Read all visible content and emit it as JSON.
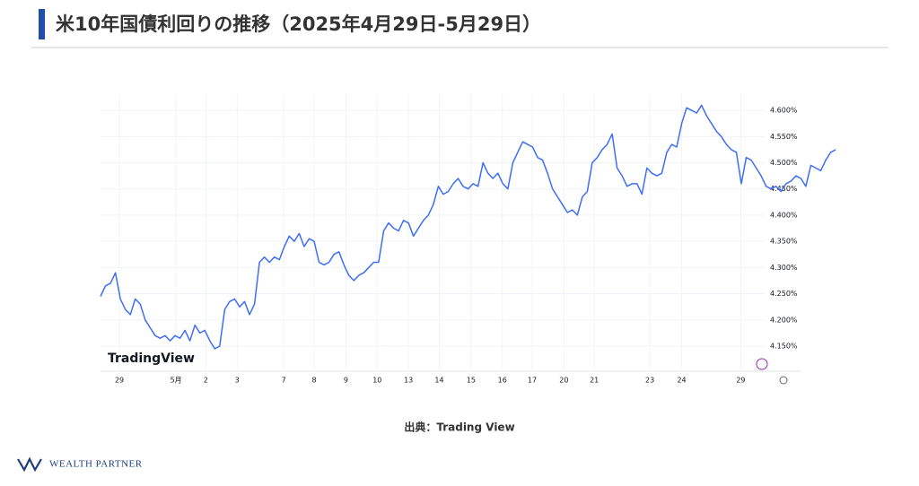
{
  "chart_data": {
    "type": "line",
    "title": "米10年国債利回りの推移（2025年4月29日-5月29日）",
    "color": "#3d6ef5",
    "grid": true,
    "watermark": "TradingView",
    "values": [
      4.245,
      4.265,
      4.27,
      4.29,
      4.24,
      4.22,
      4.21,
      4.24,
      4.23,
      4.2,
      4.185,
      4.17,
      4.165,
      4.17,
      4.16,
      4.17,
      4.165,
      4.18,
      4.16,
      4.19,
      4.175,
      4.18,
      4.16,
      4.145,
      4.15,
      4.22,
      4.235,
      4.24,
      4.225,
      4.235,
      4.21,
      4.23,
      4.31,
      4.32,
      4.31,
      4.32,
      4.315,
      4.34,
      4.36,
      4.35,
      4.365,
      4.34,
      4.355,
      4.35,
      4.31,
      4.305,
      4.31,
      4.325,
      4.33,
      4.305,
      4.285,
      4.275,
      4.285,
      4.29,
      4.3,
      4.31,
      4.31,
      4.37,
      4.385,
      4.375,
      4.37,
      4.39,
      4.385,
      4.36,
      4.375,
      4.39,
      4.4,
      4.42,
      4.455,
      4.44,
      4.445,
      4.46,
      4.47,
      4.455,
      4.45,
      4.46,
      4.455,
      4.5,
      4.48,
      4.47,
      4.48,
      4.46,
      4.45,
      4.5,
      4.52,
      4.54,
      4.535,
      4.53,
      4.51,
      4.505,
      4.48,
      4.45,
      4.435,
      4.42,
      4.405,
      4.41,
      4.4,
      4.435,
      4.445,
      4.5,
      4.51,
      4.525,
      4.535,
      4.555,
      4.49,
      4.475,
      4.455,
      4.46,
      4.46,
      4.44,
      4.49,
      4.48,
      4.475,
      4.48,
      4.52,
      4.535,
      4.53,
      4.575,
      4.605,
      4.6,
      4.595,
      4.61,
      4.59,
      4.575,
      4.56,
      4.55,
      4.535,
      4.525,
      4.52,
      4.46,
      4.51,
      4.505,
      4.49,
      4.475,
      4.455,
      4.45,
      4.455,
      4.445,
      4.46,
      4.465,
      4.475,
      4.47,
      4.455,
      4.495,
      4.49,
      4.485,
      4.505,
      4.52,
      4.525
    ],
    "xlim": [
      0,
      133.7
    ],
    "xticks": [
      {
        "value": 3.8,
        "label": "29"
      },
      {
        "value": 15.2,
        "label": "5月"
      },
      {
        "value": 21.2,
        "label": "2"
      },
      {
        "value": 27.5,
        "label": "3"
      },
      {
        "value": 36.9,
        "label": "7"
      },
      {
        "value": 43,
        "label": "8"
      },
      {
        "value": 49.4,
        "label": "9"
      },
      {
        "value": 55.7,
        "label": "10"
      },
      {
        "value": 62,
        "label": "13"
      },
      {
        "value": 68.2,
        "label": "14"
      },
      {
        "value": 74.6,
        "label": "15"
      },
      {
        "value": 80.9,
        "label": "16"
      },
      {
        "value": 86.9,
        "label": "17"
      },
      {
        "value": 93.3,
        "label": "20"
      },
      {
        "value": 99.4,
        "label": "21"
      },
      {
        "value": 110.6,
        "label": "23"
      },
      {
        "value": 117,
        "label": "24"
      },
      {
        "value": 128.9,
        "label": "29"
      }
    ],
    "ylim": [
      4.102,
      4.631
    ],
    "yticks": [
      {
        "value": 4.15,
        "label": "4.150%"
      },
      {
        "value": 4.2,
        "label": "4.200%"
      },
      {
        "value": 4.25,
        "label": "4.250%"
      },
      {
        "value": 4.3,
        "label": "4.300%"
      },
      {
        "value": 4.35,
        "label": "4.350%"
      },
      {
        "value": 4.4,
        "label": "4.400%"
      },
      {
        "value": 4.45,
        "label": "4.450%"
      },
      {
        "value": 4.5,
        "label": "4.500%"
      },
      {
        "value": 4.55,
        "label": "4.550%"
      },
      {
        "value": 4.6,
        "label": "4.600%"
      }
    ]
  },
  "source": "出典：Trading View",
  "logo": "WEALTH PARTNER"
}
